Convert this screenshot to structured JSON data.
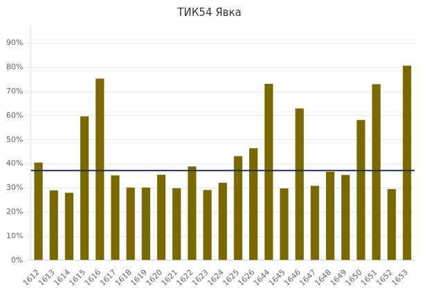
{
  "chart_data": {
    "type": "bar",
    "title": "ТИК54 Явка",
    "categories": [
      "1612",
      "1613",
      "1614",
      "1615",
      "1616",
      "1617",
      "1618",
      "1619",
      "1620",
      "1621",
      "1622",
      "1623",
      "1624",
      "1625",
      "1626",
      "1644",
      "1645",
      "1646",
      "1647",
      "1648",
      "1649",
      "1650",
      "1651",
      "1652",
      "1653"
    ],
    "values": [
      0.405,
      0.29,
      0.28,
      0.597,
      0.753,
      0.352,
      0.302,
      0.302,
      0.355,
      0.299,
      0.389,
      0.292,
      0.322,
      0.432,
      0.465,
      0.732,
      0.298,
      0.63,
      0.309,
      0.367,
      0.354,
      0.582,
      0.73,
      0.295,
      0.807
    ],
    "color": "#7a6800",
    "hline": 0.372,
    "hline_color": "#1f2d5a",
    "ylim": [
      0,
      0.97
    ],
    "yticks": [
      {
        "value": 0.0,
        "label": "0%"
      },
      {
        "value": 0.1,
        "label": "10%"
      },
      {
        "value": 0.2,
        "label": "20%"
      },
      {
        "value": 0.3,
        "label": "30%"
      },
      {
        "value": 0.4,
        "label": "40%"
      },
      {
        "value": 0.5,
        "label": "50%"
      },
      {
        "value": 0.6,
        "label": "60%"
      },
      {
        "value": 0.7,
        "label": "70%"
      },
      {
        "value": 0.8,
        "label": "80%"
      },
      {
        "value": 0.9,
        "label": "90%"
      }
    ],
    "grid": true
  }
}
